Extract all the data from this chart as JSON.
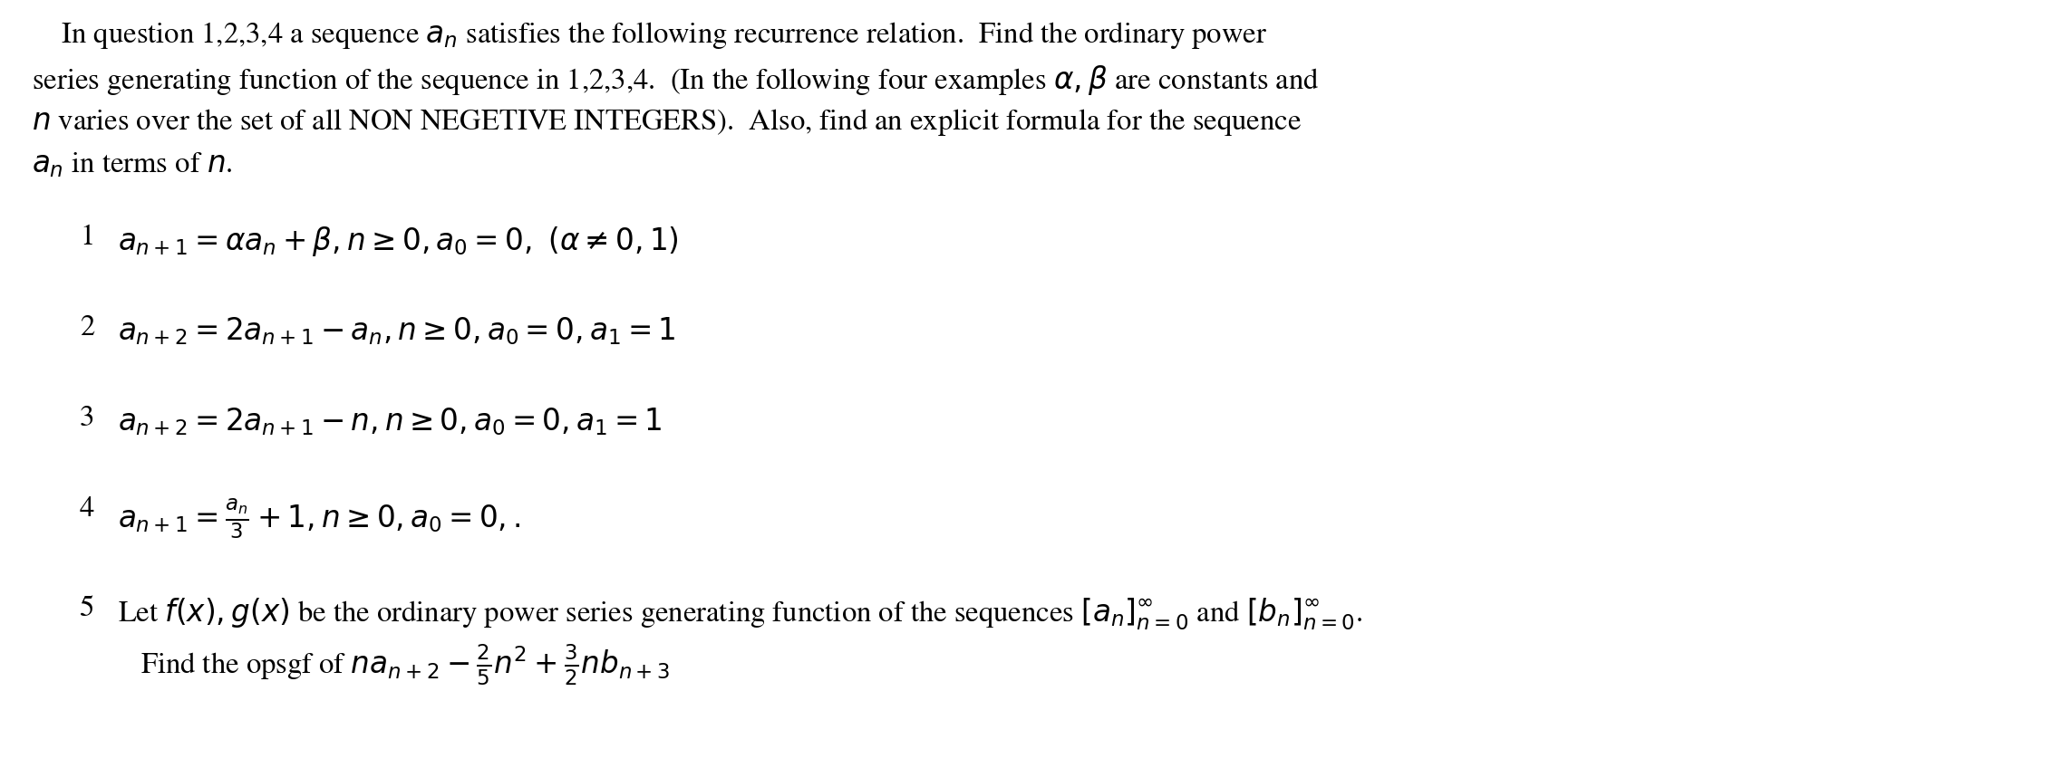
{
  "figsize": [
    22.86,
    8.48
  ],
  "dpi": 100,
  "bg_color": "#ffffff",
  "text_color": "#000000",
  "font_size": 23.5,
  "intro_lines": [
    "    In question 1,2,3,4 a sequence $a_n$ satisfies the following recurrence relation.  Find the ordinary power",
    "series generating function of the sequence in 1,2,3,4.  (In the following four examples $\\alpha, \\beta$ are constants and",
    "$n$ varies over the set of all NON NEGETIVE INTEGERS).  Also, find an explicit formula for the sequence",
    "$a_n$ in terms of $n$."
  ],
  "items": [
    {
      "num": "1",
      "formula": "$a_{n+1} = \\alpha a_n + \\beta, n \\geq 0, a_0 = 0, \\ (\\alpha \\neq 0, 1)$"
    },
    {
      "num": "2",
      "formula": "$a_{n+2} = 2a_{n+1} - a_n, n \\geq 0, a_0 = 0, a_1 = 1$"
    },
    {
      "num": "3",
      "formula": "$a_{n+2} = 2a_{n+1} - n, n \\geq 0, a_0 = 0, a_1 = 1$"
    },
    {
      "num": "4",
      "formula": "$a_{n+1} = \\frac{a_n}{3} + 1, n \\geq 0, a_0 = 0,.$"
    }
  ],
  "item5_num": "5",
  "item5_line1": "Let $f(x), g(x)$ be the ordinary power series generating function of the sequences $[a_n]_{n=0}^{\\infty}$ and $[b_n]_{n=0}^{\\infty}$.",
  "item5_line2": "Find the opsgf of $na_{n+2} - \\frac{2}{5}n^2 + \\frac{3}{2}nb_{n+3}$"
}
